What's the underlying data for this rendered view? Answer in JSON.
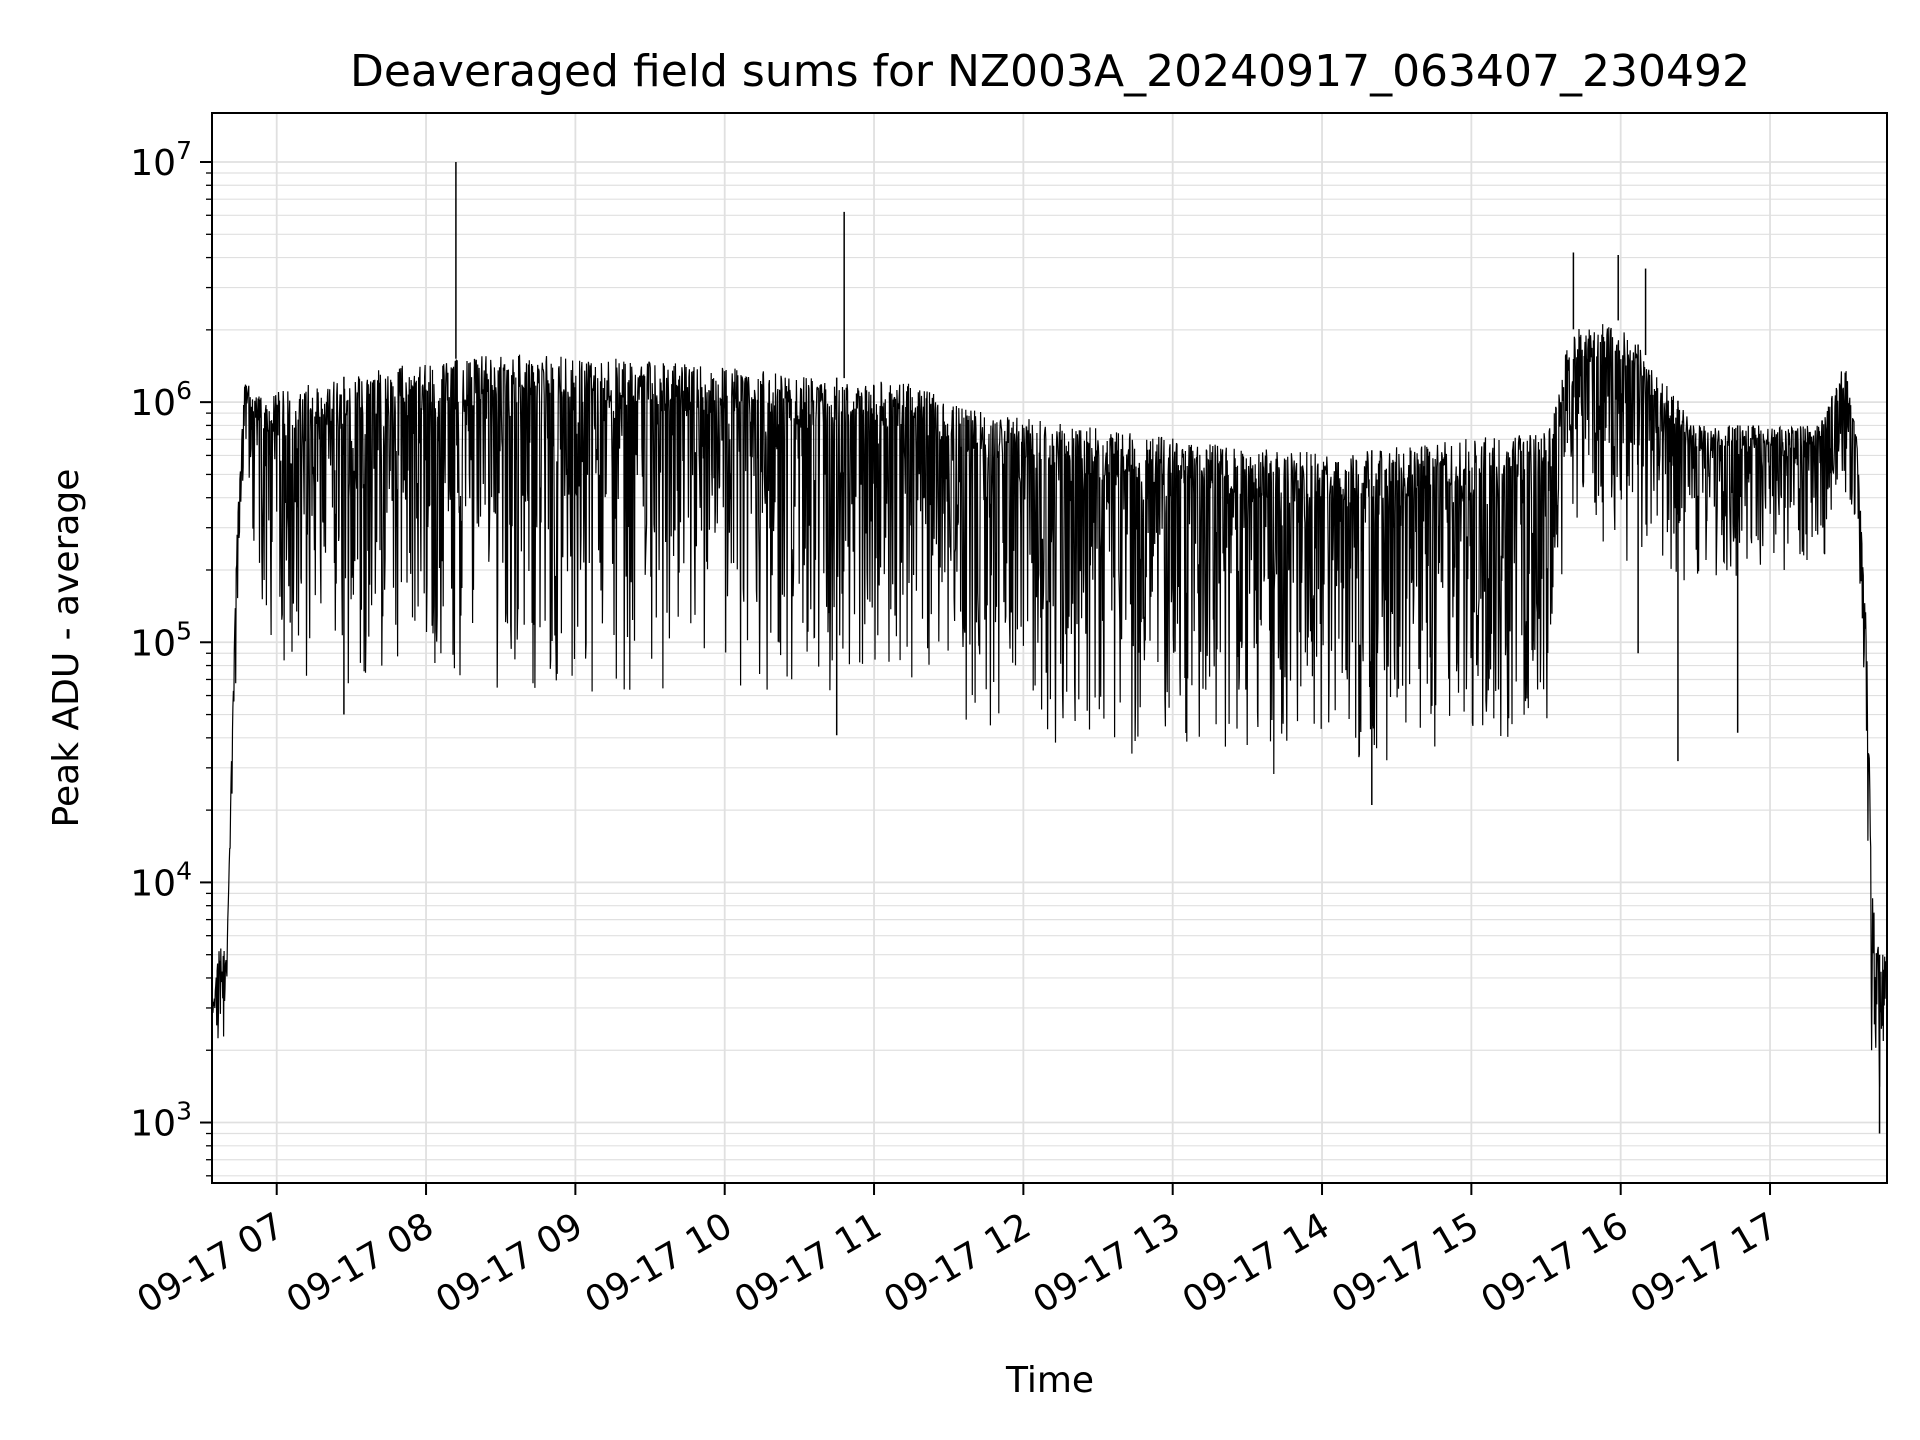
{
  "chart_data": {
    "type": "line",
    "title": "Deaveraged field sums for NZ003A_20240917_063407_230492",
    "xlabel": "Time",
    "ylabel": "Peak ADU - average",
    "yscale": "log",
    "ylim": [
      560,
      16000000
    ],
    "xlim": [
      "2024-09-17T06:34",
      "2024-09-17T17:47"
    ],
    "grid": true,
    "line_color": "#000000",
    "grid_color": "#e0e0e0",
    "x_ticks": [
      {
        "value": "2024-09-17T07:00",
        "label": "09-17 07"
      },
      {
        "value": "2024-09-17T08:00",
        "label": "09-17 08"
      },
      {
        "value": "2024-09-17T09:00",
        "label": "09-17 09"
      },
      {
        "value": "2024-09-17T10:00",
        "label": "09-17 10"
      },
      {
        "value": "2024-09-17T11:00",
        "label": "09-17 11"
      },
      {
        "value": "2024-09-17T12:00",
        "label": "09-17 12"
      },
      {
        "value": "2024-09-17T13:00",
        "label": "09-17 13"
      },
      {
        "value": "2024-09-17T14:00",
        "label": "09-17 14"
      },
      {
        "value": "2024-09-17T15:00",
        "label": "09-17 15"
      },
      {
        "value": "2024-09-17T16:00",
        "label": "09-17 16"
      },
      {
        "value": "2024-09-17T17:00",
        "label": "09-17 17"
      }
    ],
    "y_ticks": [
      {
        "value": 1000,
        "base": "10",
        "exp": "3"
      },
      {
        "value": 10000,
        "base": "10",
        "exp": "4"
      },
      {
        "value": 100000,
        "base": "10",
        "exp": "5"
      },
      {
        "value": 1000000,
        "base": "10",
        "exp": "6"
      },
      {
        "value": 10000000,
        "base": "10",
        "exp": "7"
      }
    ],
    "envelope": [
      {
        "x": "2024-09-17T06:34",
        "upper": 3000,
        "lower": 2000
      },
      {
        "x": "2024-09-17T06:37",
        "upper": 5500,
        "lower": 1600
      },
      {
        "x": "2024-09-17T06:40",
        "upper": 5000,
        "lower": 2700
      },
      {
        "x": "2024-09-17T06:44",
        "upper": 300000,
        "lower": 100000
      },
      {
        "x": "2024-09-17T06:47",
        "upper": 1200000,
        "lower": 600000
      },
      {
        "x": "2024-09-17T06:55",
        "upper": 1100000,
        "lower": 80000
      },
      {
        "x": "2024-09-17T07:15",
        "upper": 1200000,
        "lower": 65000
      },
      {
        "x": "2024-09-17T07:45",
        "upper": 1400000,
        "lower": 65000
      },
      {
        "x": "2024-09-17T08:30",
        "upper": 1600000,
        "lower": 60000
      },
      {
        "x": "2024-09-17T09:30",
        "upper": 1500000,
        "lower": 60000
      },
      {
        "x": "2024-09-17T10:30",
        "upper": 1300000,
        "lower": 60000
      },
      {
        "x": "2024-09-17T11:15",
        "upper": 1200000,
        "lower": 55000
      },
      {
        "x": "2024-09-17T11:45",
        "upper": 900000,
        "lower": 42000
      },
      {
        "x": "2024-09-17T12:30",
        "upper": 780000,
        "lower": 33000
      },
      {
        "x": "2024-09-17T13:30",
        "upper": 640000,
        "lower": 26000
      },
      {
        "x": "2024-09-17T14:15",
        "upper": 620000,
        "lower": 27000
      },
      {
        "x": "2024-09-17T14:50",
        "upper": 700000,
        "lower": 32000
      },
      {
        "x": "2024-09-17T15:30",
        "upper": 750000,
        "lower": 40000
      },
      {
        "x": "2024-09-17T15:40",
        "upper": 2000000,
        "lower": 300000
      },
      {
        "x": "2024-09-17T16:00",
        "upper": 2200000,
        "lower": 200000
      },
      {
        "x": "2024-09-17T16:30",
        "upper": 800000,
        "lower": 150000
      },
      {
        "x": "2024-09-17T17:20",
        "upper": 800000,
        "lower": 200000
      },
      {
        "x": "2024-09-17T17:30",
        "upper": 1500000,
        "lower": 300000
      },
      {
        "x": "2024-09-17T17:35",
        "upper": 700000,
        "lower": 300000
      },
      {
        "x": "2024-09-17T17:39",
        "upper": 100000,
        "lower": 20000
      },
      {
        "x": "2024-09-17T17:41",
        "upper": 9000,
        "lower": 1500
      },
      {
        "x": "2024-09-17T17:44",
        "upper": 5000,
        "lower": 1000
      },
      {
        "x": "2024-09-17T17:47",
        "upper": 5000,
        "lower": 3000
      }
    ],
    "spikes": [
      {
        "x": "2024-09-17T08:12",
        "y": 10000000
      },
      {
        "x": "2024-09-17T10:48",
        "y": 6200000
      },
      {
        "x": "2024-09-17T15:41",
        "y": 4200000
      },
      {
        "x": "2024-09-17T15:59",
        "y": 4100000
      },
      {
        "x": "2024-09-17T16:10",
        "y": 3600000
      },
      {
        "x": "2024-09-17T16:07",
        "y": 90000
      },
      {
        "x": "2024-09-17T16:23",
        "y": 32000
      },
      {
        "x": "2024-09-17T16:47",
        "y": 42000
      },
      {
        "x": "2024-09-17T10:45",
        "y": 41000
      },
      {
        "x": "2024-09-17T14:20",
        "y": 21000
      },
      {
        "x": "2024-09-17T07:27",
        "y": 50000
      },
      {
        "x": "2024-09-17T17:44",
        "y": 900
      }
    ]
  }
}
